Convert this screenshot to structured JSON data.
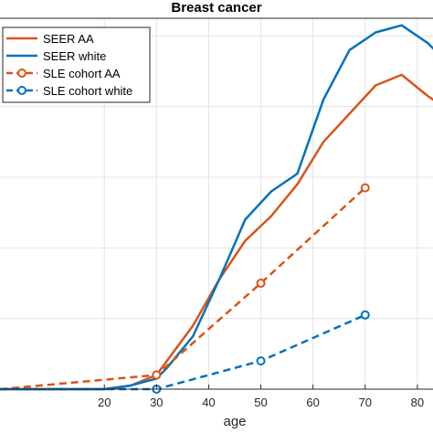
{
  "chart_data": {
    "type": "line",
    "title": "Breast cancer",
    "xlabel": "age",
    "ylabel": "",
    "xlim": [
      0,
      83
    ],
    "ylim": [
      0,
      1.05
    ],
    "x_ticks": [
      20,
      30,
      40,
      50,
      60,
      70,
      80
    ],
    "y_ticks": [
      0,
      0.2,
      0.4,
      0.6,
      0.8,
      1.0
    ],
    "grid": true,
    "legend_position": "top-left",
    "series": [
      {
        "name": "SEER AA",
        "color": "#D95319",
        "style": "solid",
        "marker": "none",
        "x": [
          0,
          20,
          25,
          30,
          32,
          37,
          42,
          47,
          52,
          57,
          62,
          67,
          72,
          77,
          82,
          84
        ],
        "y": [
          0.0,
          0.0,
          0.01,
          0.04,
          0.08,
          0.18,
          0.31,
          0.42,
          0.49,
          0.58,
          0.7,
          0.78,
          0.86,
          0.89,
          0.83,
          0.81
        ]
      },
      {
        "name": "SEER white",
        "color": "#0072BD",
        "style": "solid",
        "marker": "none",
        "x": [
          0,
          20,
          25,
          30,
          32,
          37,
          42,
          47,
          52,
          57,
          62,
          67,
          72,
          77,
          82,
          84
        ],
        "y": [
          0.0,
          0.0,
          0.01,
          0.03,
          0.06,
          0.15,
          0.31,
          0.48,
          0.56,
          0.61,
          0.82,
          0.96,
          1.01,
          1.03,
          0.98,
          0.95
        ]
      },
      {
        "name": "SLE cohort AA",
        "color": "#D95319",
        "style": "dashed",
        "marker": "circle",
        "x": [
          0,
          30,
          50,
          70
        ],
        "y": [
          0.0,
          0.04,
          0.3,
          0.57
        ]
      },
      {
        "name": "SLE cohort white",
        "color": "#0072BD",
        "style": "dashed",
        "marker": "circle",
        "x": [
          0,
          30,
          50,
          70
        ],
        "y": [
          0.0,
          0.0,
          0.08,
          0.21
        ]
      }
    ]
  }
}
